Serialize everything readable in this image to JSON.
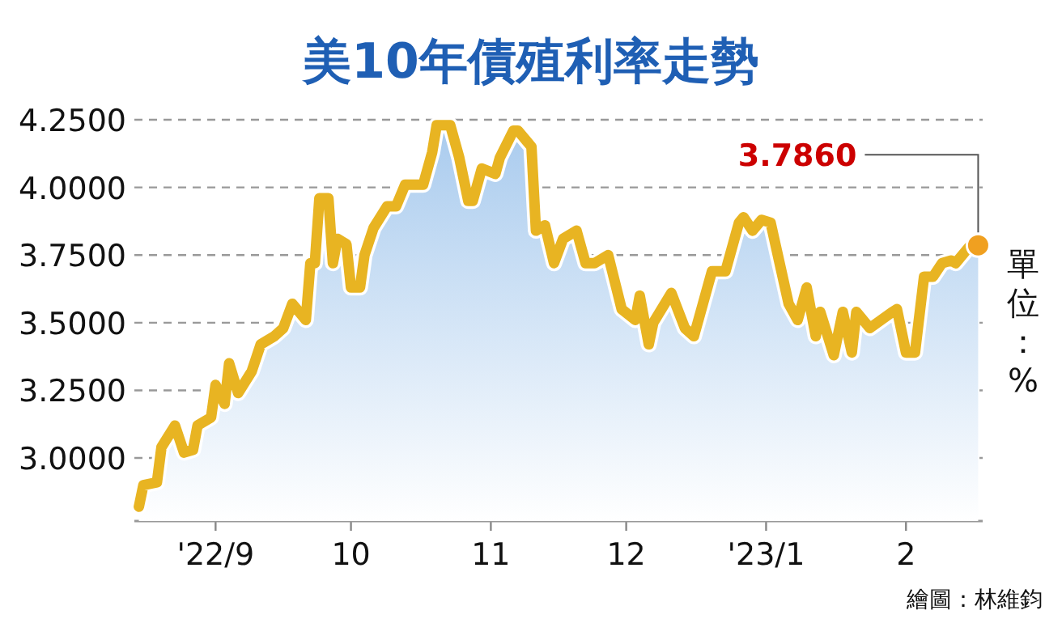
{
  "chart_data": {
    "type": "area",
    "title": "美10年債殖利率走勢",
    "ylabel": "單位：%",
    "grid": "y",
    "xlim": [
      "2022-08-14",
      "2023-02-18"
    ],
    "ylim": [
      2.767,
      4.25
    ],
    "xticks": [
      {
        "value": "2022-09-01",
        "label": "'22/9"
      },
      {
        "value": "2022-10-01",
        "label": "10"
      },
      {
        "value": "2022-11-01",
        "label": "11"
      },
      {
        "value": "2022-12-01",
        "label": "12"
      },
      {
        "value": "2023-01-01",
        "label": "'23/1"
      },
      {
        "value": "2023-02-01",
        "label": "2"
      }
    ],
    "yticks": [
      {
        "value": 3.0,
        "label": "3.0000"
      },
      {
        "value": 3.25,
        "label": "3.2500"
      },
      {
        "value": 3.5,
        "label": "3.5000"
      },
      {
        "value": 3.75,
        "label": "3.7500"
      },
      {
        "value": 4.0,
        "label": "4.0000"
      },
      {
        "value": 4.25,
        "label": "4.2500"
      }
    ],
    "x": [
      "2022-08-15",
      "2022-08-16",
      "2022-08-19",
      "2022-08-20",
      "2022-08-23",
      "2022-08-25",
      "2022-08-27",
      "2022-08-28",
      "2022-08-31",
      "2022-09-01",
      "2022-09-03",
      "2022-09-04",
      "2022-09-06",
      "2022-09-09",
      "2022-09-11",
      "2022-09-14",
      "2022-09-16",
      "2022-09-18",
      "2022-09-21",
      "2022-09-22",
      "2022-09-23",
      "2022-09-24",
      "2022-09-26",
      "2022-09-27",
      "2022-09-28",
      "2022-09-30",
      "2022-10-01",
      "2022-10-03",
      "2022-10-04",
      "2022-10-06",
      "2022-10-09",
      "2022-10-11",
      "2022-10-13",
      "2022-10-17",
      "2022-10-19",
      "2022-10-20",
      "2022-10-23",
      "2022-10-25",
      "2022-10-27",
      "2022-10-28",
      "2022-10-30",
      "2022-11-02",
      "2022-11-03",
      "2022-11-06",
      "2022-11-07",
      "2022-11-09",
      "2022-11-10",
      "2022-11-11",
      "2022-11-13",
      "2022-11-15",
      "2022-11-17",
      "2022-11-20",
      "2022-11-22",
      "2022-11-24",
      "2022-11-27",
      "2022-11-30",
      "2022-12-03",
      "2022-12-04",
      "2022-12-06",
      "2022-12-07",
      "2022-12-11",
      "2022-12-14",
      "2022-12-16",
      "2022-12-18",
      "2022-12-20",
      "2022-12-23",
      "2022-12-26",
      "2022-12-27",
      "2022-12-29",
      "2022-12-31",
      "2023-01-02",
      "2023-01-04",
      "2023-01-06",
      "2023-01-08",
      "2023-01-10",
      "2023-01-12",
      "2023-01-13",
      "2023-01-16",
      "2023-01-18",
      "2023-01-20",
      "2023-01-21",
      "2023-01-24",
      "2023-01-29",
      "2023-01-30",
      "2023-02-01",
      "2023-02-03",
      "2023-02-05",
      "2023-02-07",
      "2023-02-09",
      "2023-02-11",
      "2023-02-12",
      "2023-02-15",
      "2023-02-17"
    ],
    "series": [
      {
        "color": "#e8b422",
        "values": [
          2.82,
          2.9,
          2.91,
          3.04,
          3.12,
          3.02,
          3.03,
          3.12,
          3.15,
          3.27,
          3.2,
          3.35,
          3.24,
          3.32,
          3.42,
          3.45,
          3.48,
          3.57,
          3.51,
          3.72,
          3.72,
          3.96,
          3.96,
          3.72,
          3.81,
          3.79,
          3.63,
          3.63,
          3.75,
          3.85,
          3.93,
          3.93,
          4.01,
          4.01,
          4.13,
          4.23,
          4.23,
          4.11,
          3.95,
          3.95,
          4.07,
          4.05,
          4.11,
          4.21,
          4.21,
          4.17,
          4.15,
          3.84,
          3.86,
          3.72,
          3.81,
          3.84,
          3.72,
          3.72,
          3.75,
          3.55,
          3.51,
          3.6,
          3.42,
          3.5,
          3.61,
          3.48,
          3.45,
          3.57,
          3.69,
          3.69,
          3.87,
          3.89,
          3.84,
          3.88,
          3.87,
          3.72,
          3.57,
          3.51,
          3.63,
          3.45,
          3.54,
          3.38,
          3.54,
          3.39,
          3.54,
          3.48,
          3.54,
          3.55,
          3.39,
          3.39,
          3.67,
          3.67,
          3.72,
          3.73,
          3.72,
          3.78,
          3.786
        ]
      }
    ],
    "annotations": [
      {
        "text": "3.7860",
        "x": "2023-02-17",
        "y": 3.786
      },
      "繪圖：林維鈞"
    ]
  }
}
